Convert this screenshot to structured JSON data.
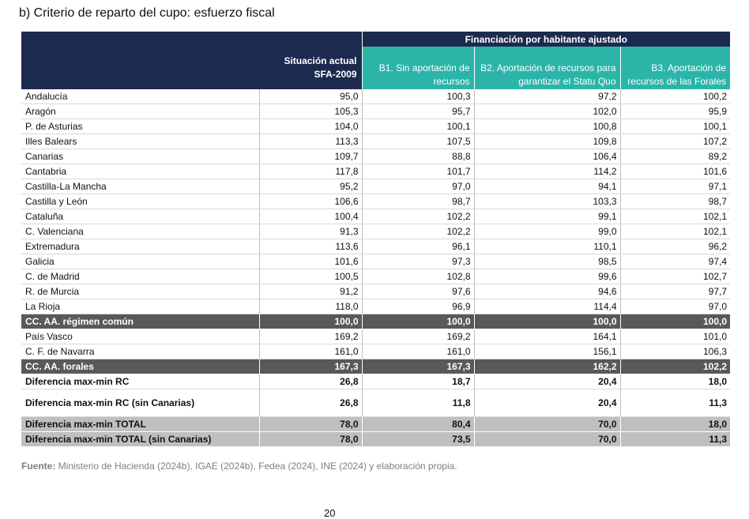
{
  "title": "b) Criterio de reparto del cupo: esfuerzo fiscal",
  "header": {
    "group_label": "Financiación por habitante ajustado",
    "columns": [
      "Situación actual SFA-2009",
      "B1. Sin aportación de recursos",
      "B2. Aportación de recursos para garantizar el Statu Quo",
      "B3. Aportación de recursos de las Forales"
    ]
  },
  "rows": [
    {
      "name": "Andalucía",
      "values": [
        "95,0",
        "100,3",
        "97,2",
        "100,2"
      ]
    },
    {
      "name": "Aragón",
      "values": [
        "105,3",
        "95,7",
        "102,0",
        "95,9"
      ]
    },
    {
      "name": "P. de Asturias",
      "values": [
        "104,0",
        "100,1",
        "100,8",
        "100,1"
      ]
    },
    {
      "name": "Illes Balears",
      "values": [
        "113,3",
        "107,5",
        "109,8",
        "107,2"
      ]
    },
    {
      "name": "Canarias",
      "values": [
        "109,7",
        "88,8",
        "106,4",
        "89,2"
      ]
    },
    {
      "name": "Cantabria",
      "values": [
        "117,8",
        "101,7",
        "114,2",
        "101,6"
      ]
    },
    {
      "name": "Castilla-La Mancha",
      "values": [
        "95,2",
        "97,0",
        "94,1",
        "97,1"
      ]
    },
    {
      "name": "Castilla y León",
      "values": [
        "106,6",
        "98,7",
        "103,3",
        "98,7"
      ]
    },
    {
      "name": "Cataluña",
      "values": [
        "100,4",
        "102,2",
        "99,1",
        "102,1"
      ]
    },
    {
      "name": "C. Valenciana",
      "values": [
        "91,3",
        "102,2",
        "99,0",
        "102,1"
      ]
    },
    {
      "name": "Extremadura",
      "values": [
        "113,6",
        "96,1",
        "110,1",
        "96,2"
      ]
    },
    {
      "name": "Galicia",
      "values": [
        "101,6",
        "97,3",
        "98,5",
        "97,4"
      ]
    },
    {
      "name": "C. de Madrid",
      "values": [
        "100,5",
        "102,8",
        "99,6",
        "102,7"
      ]
    },
    {
      "name": "R. de Murcia",
      "values": [
        "91,2",
        "97,6",
        "94,6",
        "97,7"
      ]
    },
    {
      "name": "La Rioja",
      "values": [
        "118,0",
        "96,9",
        "114,4",
        "97,0"
      ]
    }
  ],
  "summary_common": {
    "name": "CC. AA. régimen común",
    "values": [
      "100,0",
      "100,0",
      "100,0",
      "100,0"
    ]
  },
  "forales_rows": [
    {
      "name": "País Vasco",
      "values": [
        "169,2",
        "169,2",
        "164,1",
        "101,0"
      ]
    },
    {
      "name": "C. F. de Navarra",
      "values": [
        "161,0",
        "161,0",
        "156,1",
        "106,3"
      ]
    }
  ],
  "summary_forales": {
    "name": "CC. AA. forales",
    "values": [
      "167,3",
      "167,3",
      "162,2",
      "102,2"
    ]
  },
  "diff_rows": [
    {
      "name": "Diferencia max-min RC",
      "values": [
        "26,8",
        "18,7",
        "20,4",
        "18,0"
      ]
    },
    {
      "name": "Diferencia max-min RC (sin Canarias)",
      "values": [
        "26,8",
        "11,8",
        "20,4",
        "11,3"
      ]
    }
  ],
  "total_rows": [
    {
      "name": "Diferencia max-min TOTAL",
      "values": [
        "78,0",
        "80,4",
        "70,0",
        "18,0"
      ]
    },
    {
      "name": "Diferencia max-min TOTAL (sin Canarias)",
      "values": [
        "78,0",
        "73,5",
        "70,0",
        "11,3"
      ]
    }
  ],
  "source": {
    "label": "Fuente:",
    "text": " Ministerio de Hacienda (2024b), IGAE (2024b), Fedea (2024), INE (2024) y elaboración propia."
  },
  "page_number": "20",
  "colors": {
    "navy": "#1b2a4e",
    "teal": "#2bb5a9",
    "dark_grey": "#595959",
    "light_grey": "#bfbfbf"
  }
}
